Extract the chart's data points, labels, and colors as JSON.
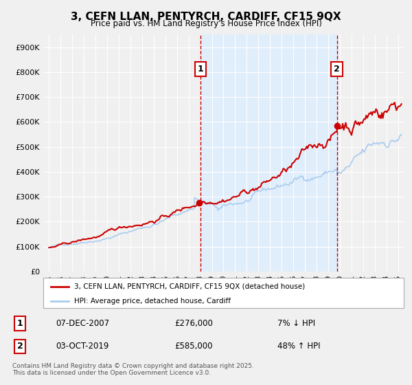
{
  "title": "3, CEFN LLAN, PENTYRCH, CARDIFF, CF15 9QX",
  "subtitle": "Price paid vs. HM Land Registry's House Price Index (HPI)",
  "legend_label_red": "3, CEFN LLAN, PENTYRCH, CARDIFF, CF15 9QX (detached house)",
  "legend_label_blue": "HPI: Average price, detached house, Cardiff",
  "annotation1_date": "07-DEC-2007",
  "annotation1_price": "£276,000",
  "annotation1_hpi": "7% ↓ HPI",
  "annotation2_date": "03-OCT-2019",
  "annotation2_price": "£585,000",
  "annotation2_hpi": "48% ↑ HPI",
  "footnote": "Contains HM Land Registry data © Crown copyright and database right 2025.\nThis data is licensed under the Open Government Licence v3.0.",
  "vline1_x": 2008.0,
  "vline2_x": 2019.75,
  "sale1_x": 2007.92,
  "sale1_y": 276000,
  "sale2_x": 2019.75,
  "sale2_y": 585000,
  "xlim": [
    1994.5,
    2025.5
  ],
  "ylim": [
    0,
    950000
  ],
  "yticks": [
    0,
    100000,
    200000,
    300000,
    400000,
    500000,
    600000,
    700000,
    800000,
    900000
  ],
  "ytick_labels": [
    "£0",
    "£100K",
    "£200K",
    "£300K",
    "£400K",
    "£500K",
    "£600K",
    "£700K",
    "£800K",
    "£900K"
  ],
  "xticks": [
    1995,
    1996,
    1997,
    1998,
    1999,
    2000,
    2001,
    2002,
    2003,
    2004,
    2005,
    2006,
    2007,
    2008,
    2009,
    2010,
    2011,
    2012,
    2013,
    2014,
    2015,
    2016,
    2017,
    2018,
    2019,
    2020,
    2021,
    2022,
    2023,
    2024,
    2025
  ],
  "background_color": "#f0f0f0",
  "plot_bg_color": "#f0f0f0",
  "red_color": "#cc0000",
  "blue_color": "#aaccee",
  "vline_color": "#cc0000",
  "shade_color": "#ddeeff",
  "grid_color": "#ffffff"
}
